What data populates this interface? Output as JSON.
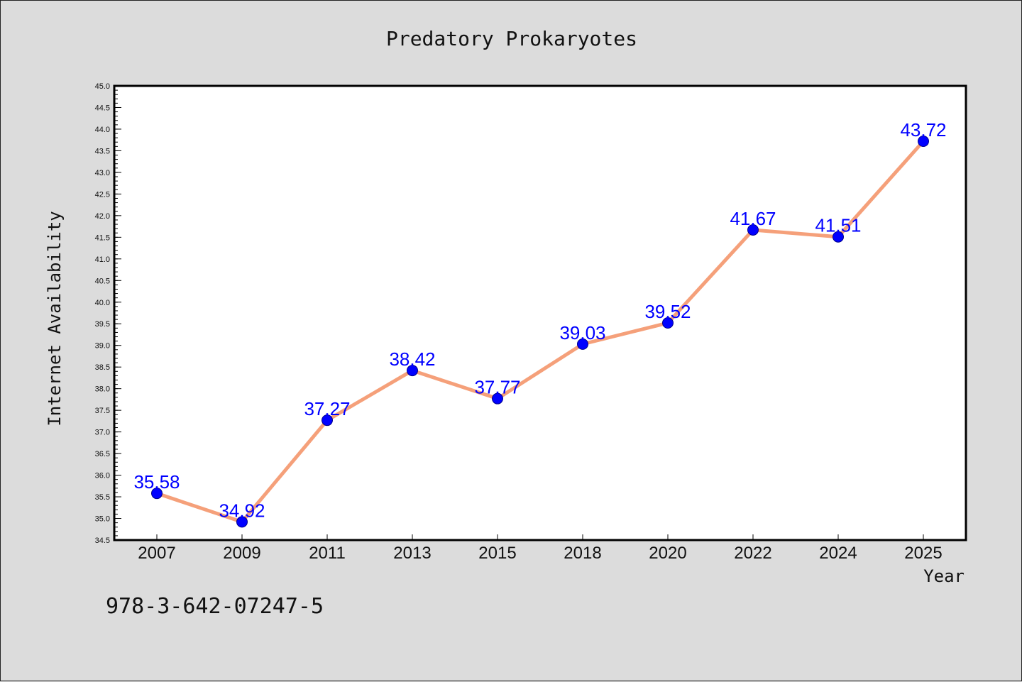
{
  "chart_data": {
    "type": "line",
    "title": "Predatory Prokaryotes",
    "xlabel": "Year",
    "ylabel": "Internet Availability",
    "categories": [
      "2007",
      "2009",
      "2011",
      "2013",
      "2015",
      "2018",
      "2020",
      "2022",
      "2024",
      "2025"
    ],
    "series": [
      {
        "values": [
          35.58,
          34.92,
          37.27,
          38.42,
          37.77,
          39.03,
          39.52,
          41.67,
          41.51,
          43.72
        ],
        "data_labels": [
          "35.58",
          "34.92",
          "37.27",
          "38.42",
          "37.77",
          "39.03",
          "39.52",
          "41.67",
          "41.51",
          "43.72"
        ]
      }
    ],
    "ylim": [
      34.5,
      45.0
    ],
    "yticks": [
      "34.5",
      "35.0",
      "35.5",
      "36.0",
      "36.5",
      "37.0",
      "37.5",
      "38.0",
      "38.5",
      "39.0",
      "39.5",
      "40.0",
      "40.5",
      "41.0",
      "41.5",
      "42.0",
      "42.5",
      "43.0",
      "43.5",
      "44.0",
      "44.5",
      "45.0"
    ],
    "grid": false,
    "colors": {
      "line": "#f5a07a",
      "marker": "#0000ff",
      "label": "#0000ff",
      "background": "#dcdcdc",
      "plot_background": "#ffffff"
    }
  },
  "footer_text": "978-3-642-07247-5"
}
